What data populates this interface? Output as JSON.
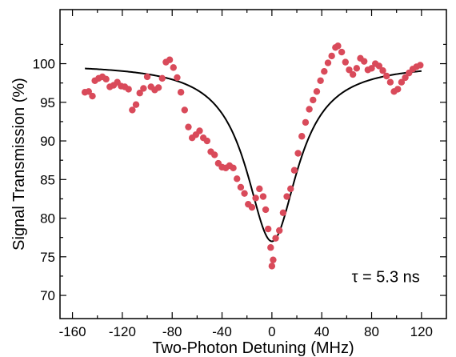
{
  "chart_data": {
    "type": "scatter",
    "xlabel": "Two-Photon Detuning (MHz)",
    "ylabel": "Signal Transmission (%)",
    "xlim": [
      -170,
      140
    ],
    "ylim": [
      67,
      107
    ],
    "x_ticks": [
      -160,
      -120,
      -80,
      -40,
      0,
      40,
      80,
      120
    ],
    "x_tick_labels": [
      "-160",
      "-120",
      "-80",
      "-40",
      "0",
      "40",
      "80",
      "120"
    ],
    "y_ticks": [
      70,
      75,
      80,
      85,
      90,
      95,
      100
    ],
    "y_tick_labels": [
      "70",
      "75",
      "80",
      "85",
      "90",
      "95",
      "100"
    ],
    "annotation": "τ = 5.3 ns",
    "grid": false,
    "series": [
      {
        "kind": "points",
        "color": "#d94a5a",
        "points": [
          [
            -150,
            96.3
          ],
          [
            -147,
            96.4
          ],
          [
            -144,
            95.8
          ],
          [
            -142,
            97.8
          ],
          [
            -139,
            98.1
          ],
          [
            -136,
            98.3
          ],
          [
            -133,
            98.0
          ],
          [
            -130,
            97.0
          ],
          [
            -127,
            97.2
          ],
          [
            -124,
            97.6
          ],
          [
            -121,
            97.1
          ],
          [
            -118,
            97.0
          ],
          [
            -115,
            96.7
          ],
          [
            -112,
            94.0
          ],
          [
            -109,
            94.7
          ],
          [
            -106,
            96.2
          ],
          [
            -103,
            96.8
          ],
          [
            -100,
            98.3
          ],
          [
            -97,
            97.0
          ],
          [
            -94,
            96.6
          ],
          [
            -91,
            96.9
          ],
          [
            -88,
            98.1
          ],
          [
            -85,
            100.2
          ],
          [
            -82,
            100.5
          ],
          [
            -79,
            99.5
          ],
          [
            -76,
            98.2
          ],
          [
            -73,
            96.3
          ],
          [
            -70,
            94.0
          ],
          [
            -67,
            91.8
          ],
          [
            -64,
            90.4
          ],
          [
            -61,
            90.8
          ],
          [
            -58,
            91.3
          ],
          [
            -55,
            90.4
          ],
          [
            -52,
            90.0
          ],
          [
            -49,
            88.6
          ],
          [
            -46,
            88.2
          ],
          [
            -43,
            87.1
          ],
          [
            -40,
            86.6
          ],
          [
            -37,
            86.5
          ],
          [
            -34,
            86.8
          ],
          [
            -31,
            86.5
          ],
          [
            -28,
            85.1
          ],
          [
            -25,
            84.0
          ],
          [
            -22,
            83.2
          ],
          [
            -19,
            81.8
          ],
          [
            -16,
            81.4
          ],
          [
            -13,
            82.6
          ],
          [
            -10,
            83.8
          ],
          [
            -7,
            82.8
          ],
          [
            -5,
            81.1
          ],
          [
            -3,
            78.6
          ],
          [
            -1,
            76.2
          ],
          [
            0,
            73.8
          ],
          [
            1,
            74.6
          ],
          [
            3,
            77.4
          ],
          [
            6,
            78.4
          ],
          [
            9,
            80.7
          ],
          [
            12,
            82.8
          ],
          [
            15,
            83.8
          ],
          [
            18,
            86.2
          ],
          [
            21,
            88.4
          ],
          [
            24,
            90.6
          ],
          [
            27,
            92.4
          ],
          [
            30,
            94.1
          ],
          [
            33,
            95.3
          ],
          [
            36,
            96.4
          ],
          [
            39,
            97.8
          ],
          [
            42,
            99.0
          ],
          [
            45,
            100.1
          ],
          [
            48,
            101.0
          ],
          [
            51,
            102.1
          ],
          [
            53,
            102.3
          ],
          [
            56,
            101.5
          ],
          [
            59,
            100.2
          ],
          [
            62,
            99.2
          ],
          [
            65,
            98.6
          ],
          [
            68,
            99.4
          ],
          [
            71,
            100.7
          ],
          [
            74,
            100.3
          ],
          [
            77,
            99.2
          ],
          [
            80,
            99.4
          ],
          [
            83,
            100.0
          ],
          [
            86,
            99.7
          ],
          [
            89,
            99.1
          ],
          [
            92,
            98.4
          ],
          [
            95,
            97.6
          ],
          [
            98,
            96.4
          ],
          [
            101,
            96.7
          ],
          [
            104,
            97.6
          ],
          [
            107,
            98.2
          ],
          [
            110,
            98.8
          ],
          [
            113,
            99.3
          ],
          [
            116,
            99.6
          ],
          [
            119,
            99.8
          ]
        ]
      },
      {
        "kind": "fit",
        "color": "#000000",
        "x_range": [
          -150,
          120
        ],
        "baseline": 100,
        "depth": 23,
        "center": 0,
        "gamma": 25
      }
    ]
  }
}
